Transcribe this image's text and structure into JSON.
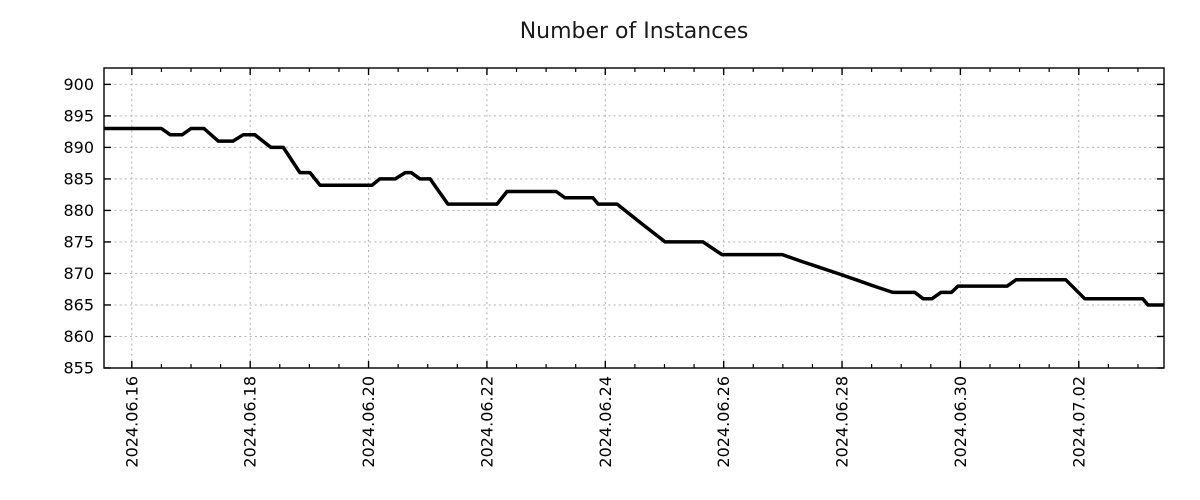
{
  "page": {
    "background_color": "#ffffff"
  },
  "chart_data": {
    "type": "line",
    "title": "Number of Instances",
    "xlabel": "",
    "ylabel": "",
    "legend": "none",
    "grid": {
      "shown": true,
      "style": "dashed",
      "color": "#b0b0b0"
    },
    "frame_color": "#000000",
    "x_axis": {
      "kind": "date",
      "tick_label_rotation_deg": -90,
      "major_tick_interval_days": 2,
      "minor_tick_interval_days": 0.5,
      "range_days_rel_first_label": [
        -0.47,
        17.44
      ],
      "major_ticks": [
        {
          "t": 0,
          "label": "2024.06.16"
        },
        {
          "t": 2,
          "label": "2024.06.18"
        },
        {
          "t": 4,
          "label": "2024.06.20"
        },
        {
          "t": 6,
          "label": "2024.06.22"
        },
        {
          "t": 8,
          "label": "2024.06.24"
        },
        {
          "t": 10,
          "label": "2024.06.26"
        },
        {
          "t": 12,
          "label": "2024.06.28"
        },
        {
          "t": 14,
          "label": "2024.06.30"
        },
        {
          "t": 16,
          "label": "2024.07.02"
        }
      ]
    },
    "y_axis": {
      "range": [
        855,
        902.6
      ],
      "ticks": [
        855,
        860,
        865,
        870,
        875,
        880,
        885,
        890,
        895,
        900
      ]
    },
    "series": [
      {
        "name": "instances",
        "color": "#000000",
        "line_width": 3.5,
        "points_t_days_value": [
          [
            -0.47,
            893
          ],
          [
            0.5,
            893
          ],
          [
            0.65,
            892
          ],
          [
            0.85,
            892
          ],
          [
            1.0,
            893
          ],
          [
            1.22,
            893
          ],
          [
            1.46,
            891
          ],
          [
            1.71,
            891
          ],
          [
            1.88,
            892
          ],
          [
            2.08,
            892
          ],
          [
            2.35,
            890
          ],
          [
            2.56,
            890
          ],
          [
            2.84,
            886
          ],
          [
            3.01,
            886
          ],
          [
            3.18,
            884
          ],
          [
            4.06,
            884
          ],
          [
            4.19,
            885
          ],
          [
            4.45,
            885
          ],
          [
            4.62,
            886
          ],
          [
            4.72,
            886
          ],
          [
            4.87,
            885
          ],
          [
            5.04,
            885
          ],
          [
            5.34,
            881
          ],
          [
            6.17,
            881
          ],
          [
            6.34,
            883
          ],
          [
            7.17,
            883
          ],
          [
            7.32,
            882
          ],
          [
            7.79,
            882
          ],
          [
            7.88,
            881
          ],
          [
            8.2,
            881
          ],
          [
            8.6,
            878
          ],
          [
            9.01,
            875
          ],
          [
            9.65,
            875
          ],
          [
            9.97,
            873
          ],
          [
            10.99,
            873
          ],
          [
            11.29,
            872
          ],
          [
            11.61,
            871
          ],
          [
            11.93,
            870
          ],
          [
            12.24,
            869
          ],
          [
            12.54,
            868
          ],
          [
            12.86,
            867
          ],
          [
            13.23,
            867
          ],
          [
            13.37,
            866
          ],
          [
            13.52,
            866
          ],
          [
            13.67,
            867
          ],
          [
            13.85,
            867
          ],
          [
            13.96,
            868
          ],
          [
            14.79,
            868
          ],
          [
            14.94,
            869
          ],
          [
            15.78,
            869
          ],
          [
            16.1,
            866
          ],
          [
            17.08,
            866
          ],
          [
            17.17,
            865
          ],
          [
            17.44,
            865
          ]
        ]
      }
    ]
  }
}
